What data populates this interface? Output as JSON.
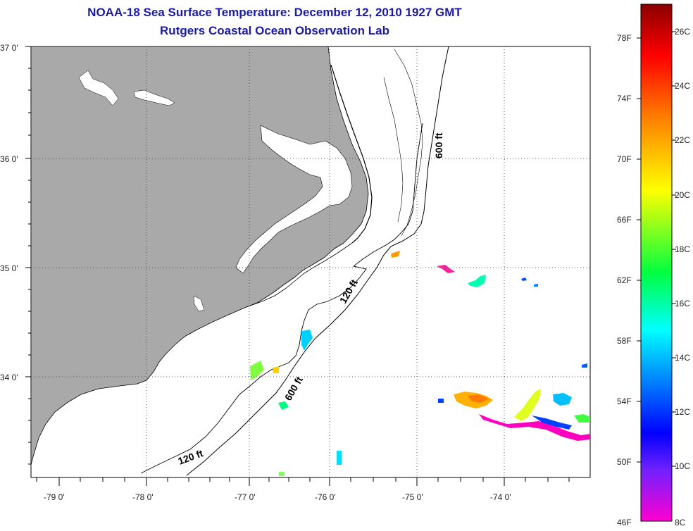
{
  "title": {
    "line1": "NOAA-18 Sea Surface Temperature:  December 12, 2010 1927 GMT",
    "line2": "Rutgers Coastal Ocean Observation Lab"
  },
  "axes": {
    "lat_labels": [
      "37 0'",
      "36 0'",
      "35 0'",
      "34 0'"
    ],
    "lon_labels": [
      "-79 0'",
      "-78 0'",
      "-77 0'",
      "-76 0'",
      "-75 0'",
      "-74 0'"
    ]
  },
  "contours": {
    "c600_north": "600 ft",
    "c600_south": "600 ft",
    "c120_north": "120 ft",
    "c120_south": "120 ft"
  },
  "colorbar": {
    "fahrenheit": [
      "78F",
      "74F",
      "70F",
      "66F",
      "62F",
      "58F",
      "54F",
      "50F",
      "46F"
    ],
    "celsius": [
      "26C",
      "24C",
      "22C",
      "20C",
      "18C",
      "16C",
      "14C",
      "12C",
      "10C",
      "8C"
    ]
  },
  "colors": {
    "land": "#a9a9a9",
    "title": "#1a1aa6",
    "grid": "#555555"
  }
}
